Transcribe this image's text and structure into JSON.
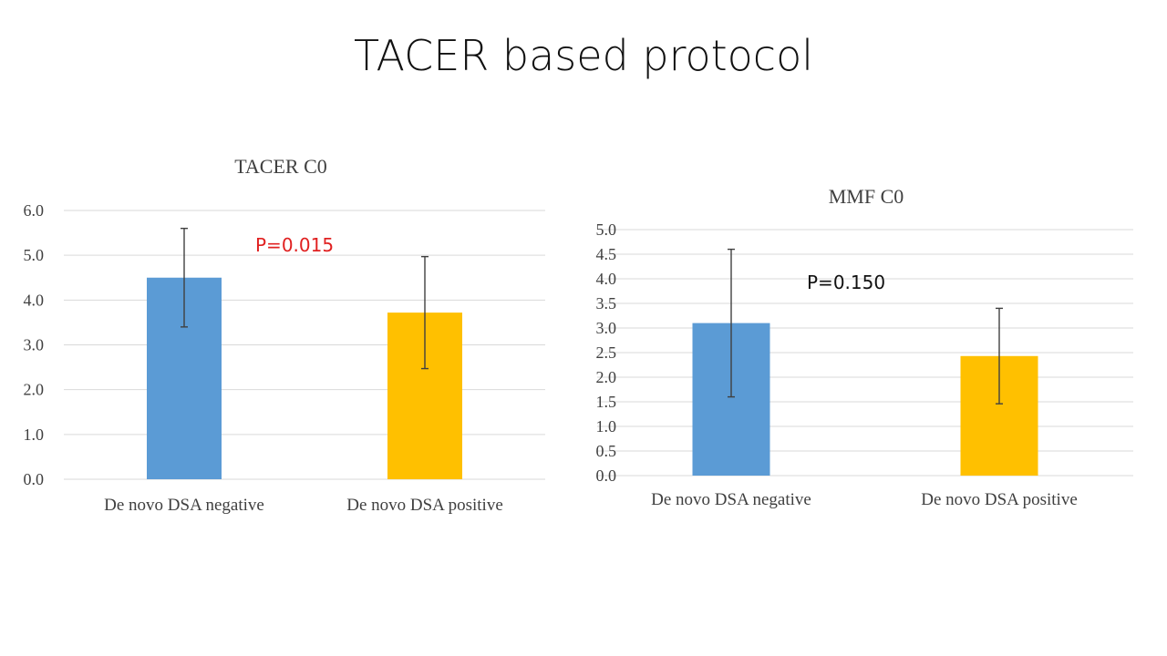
{
  "slide_title": "TACER based protocol",
  "chart_data": [
    {
      "type": "bar",
      "title": "TACER C0",
      "categories": [
        "De novo DSA negative",
        "De novo DSA positive"
      ],
      "values": [
        4.5,
        3.72
      ],
      "error": [
        1.1,
        1.25
      ],
      "colors": [
        "#5b9bd5",
        "#ffc000"
      ],
      "ylim": [
        0,
        6
      ],
      "yticks": [
        "0.0",
        "1.0",
        "2.0",
        "3.0",
        "4.0",
        "5.0",
        "6.0"
      ],
      "grid": true,
      "annotation": {
        "text": "P=0.015",
        "color": "#e02020"
      }
    },
    {
      "type": "bar",
      "title": "MMF C0",
      "categories": [
        "De novo DSA negative",
        "De novo DSA positive"
      ],
      "values": [
        3.1,
        2.43
      ],
      "error": [
        1.5,
        0.97
      ],
      "colors": [
        "#5b9bd5",
        "#ffc000"
      ],
      "ylim": [
        0,
        5
      ],
      "yticks": [
        "0.0",
        "0.5",
        "1.0",
        "1.5",
        "2.0",
        "2.5",
        "3.0",
        "3.5",
        "4.0",
        "4.5",
        "5.0"
      ],
      "grid": true,
      "annotation": {
        "text": "P=0.150",
        "color": "#111111"
      }
    }
  ]
}
